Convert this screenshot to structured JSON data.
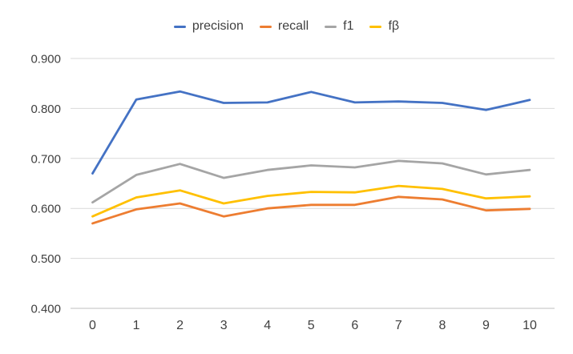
{
  "chart_data": {
    "type": "line",
    "title": "",
    "xlabel": "",
    "ylabel": "",
    "grid": true,
    "legend_position": "top",
    "ylim": [
      0.4,
      0.9
    ],
    "y_ticks": [
      "0.900",
      "0.800",
      "0.700",
      "0.600",
      "0.500",
      "0.400"
    ],
    "categories": [
      "0",
      "1",
      "2",
      "3",
      "4",
      "5",
      "6",
      "7",
      "8",
      "9",
      "10"
    ],
    "x": [
      0,
      1,
      2,
      3,
      4,
      5,
      6,
      7,
      8,
      9,
      10
    ],
    "series": [
      {
        "name": "precision",
        "color": "#4472C4",
        "values": [
          0.67,
          0.818,
          0.834,
          0.811,
          0.812,
          0.833,
          0.812,
          0.814,
          0.811,
          0.797,
          0.817
        ]
      },
      {
        "name": "recall",
        "color": "#ED7D31",
        "values": [
          0.57,
          0.598,
          0.61,
          0.584,
          0.6,
          0.607,
          0.607,
          0.623,
          0.618,
          0.596,
          0.599
        ]
      },
      {
        "name": "f1",
        "color": "#A5A5A5",
        "values": [
          0.612,
          0.667,
          0.689,
          0.661,
          0.677,
          0.686,
          0.682,
          0.695,
          0.69,
          0.668,
          0.677
        ]
      },
      {
        "name": "fβ",
        "color": "#FFC000",
        "values": [
          0.584,
          0.622,
          0.636,
          0.61,
          0.625,
          0.633,
          0.632,
          0.645,
          0.639,
          0.62,
          0.624
        ]
      }
    ],
    "colors": {
      "gridline": "#D9D9D9",
      "axis_line": "#BFBFBF",
      "tick_text": "#3f3f3f"
    }
  }
}
